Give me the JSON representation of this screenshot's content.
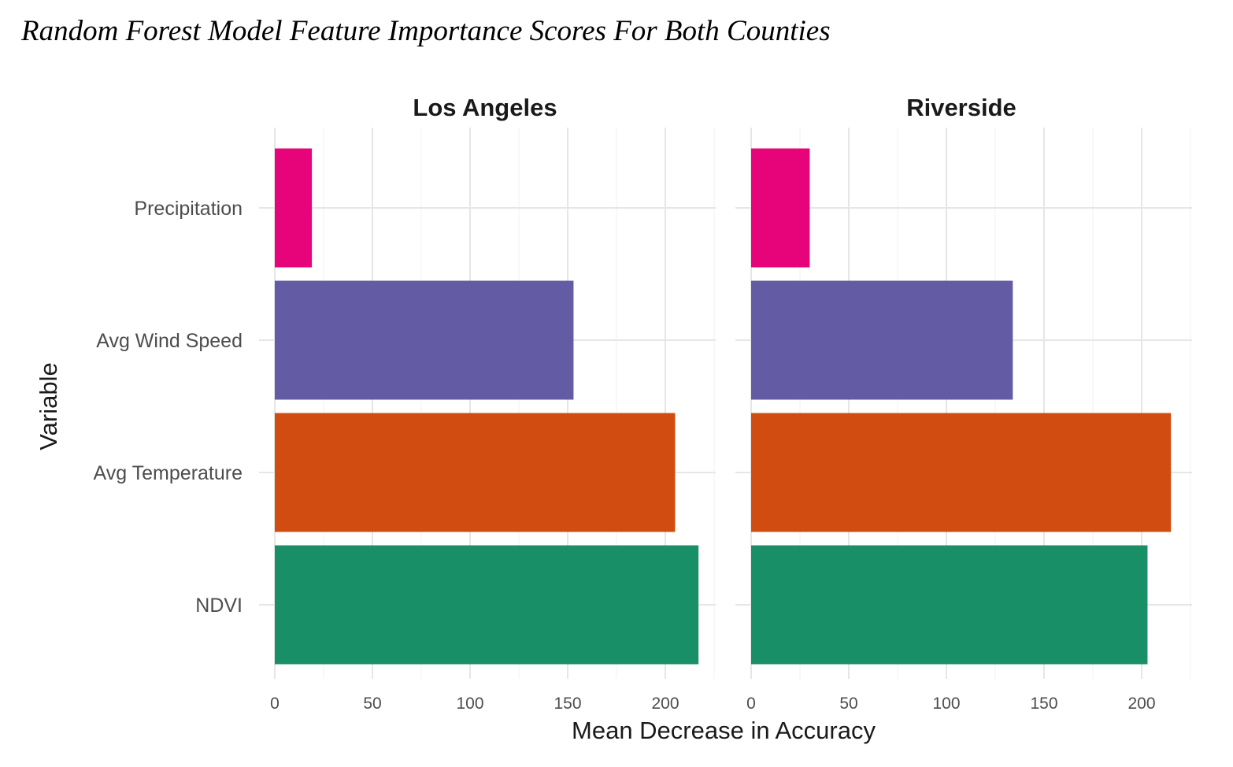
{
  "title": "Random Forest Model Feature Importance Scores For Both Counties",
  "chart_data": {
    "type": "bar",
    "orientation": "horizontal",
    "xlabel": "Mean Decrease in Accuracy",
    "ylabel": "Variable",
    "xlim": [
      0,
      225
    ],
    "xticks": [
      0,
      50,
      100,
      150,
      200
    ],
    "grid": true,
    "legend": "none",
    "categories": [
      "Precipitation",
      "Avg Wind Speed",
      "Avg Temperature",
      "NDVI"
    ],
    "colors": {
      "Precipitation": "#e7037a",
      "Avg Wind Speed": "#635ba3",
      "Avg Temperature": "#d14c10",
      "NDVI": "#198f68"
    },
    "facets": [
      {
        "name": "Los Angeles",
        "values": [
          19,
          153,
          205,
          217
        ]
      },
      {
        "name": "Riverside",
        "values": [
          30,
          134,
          215,
          203
        ]
      }
    ]
  }
}
